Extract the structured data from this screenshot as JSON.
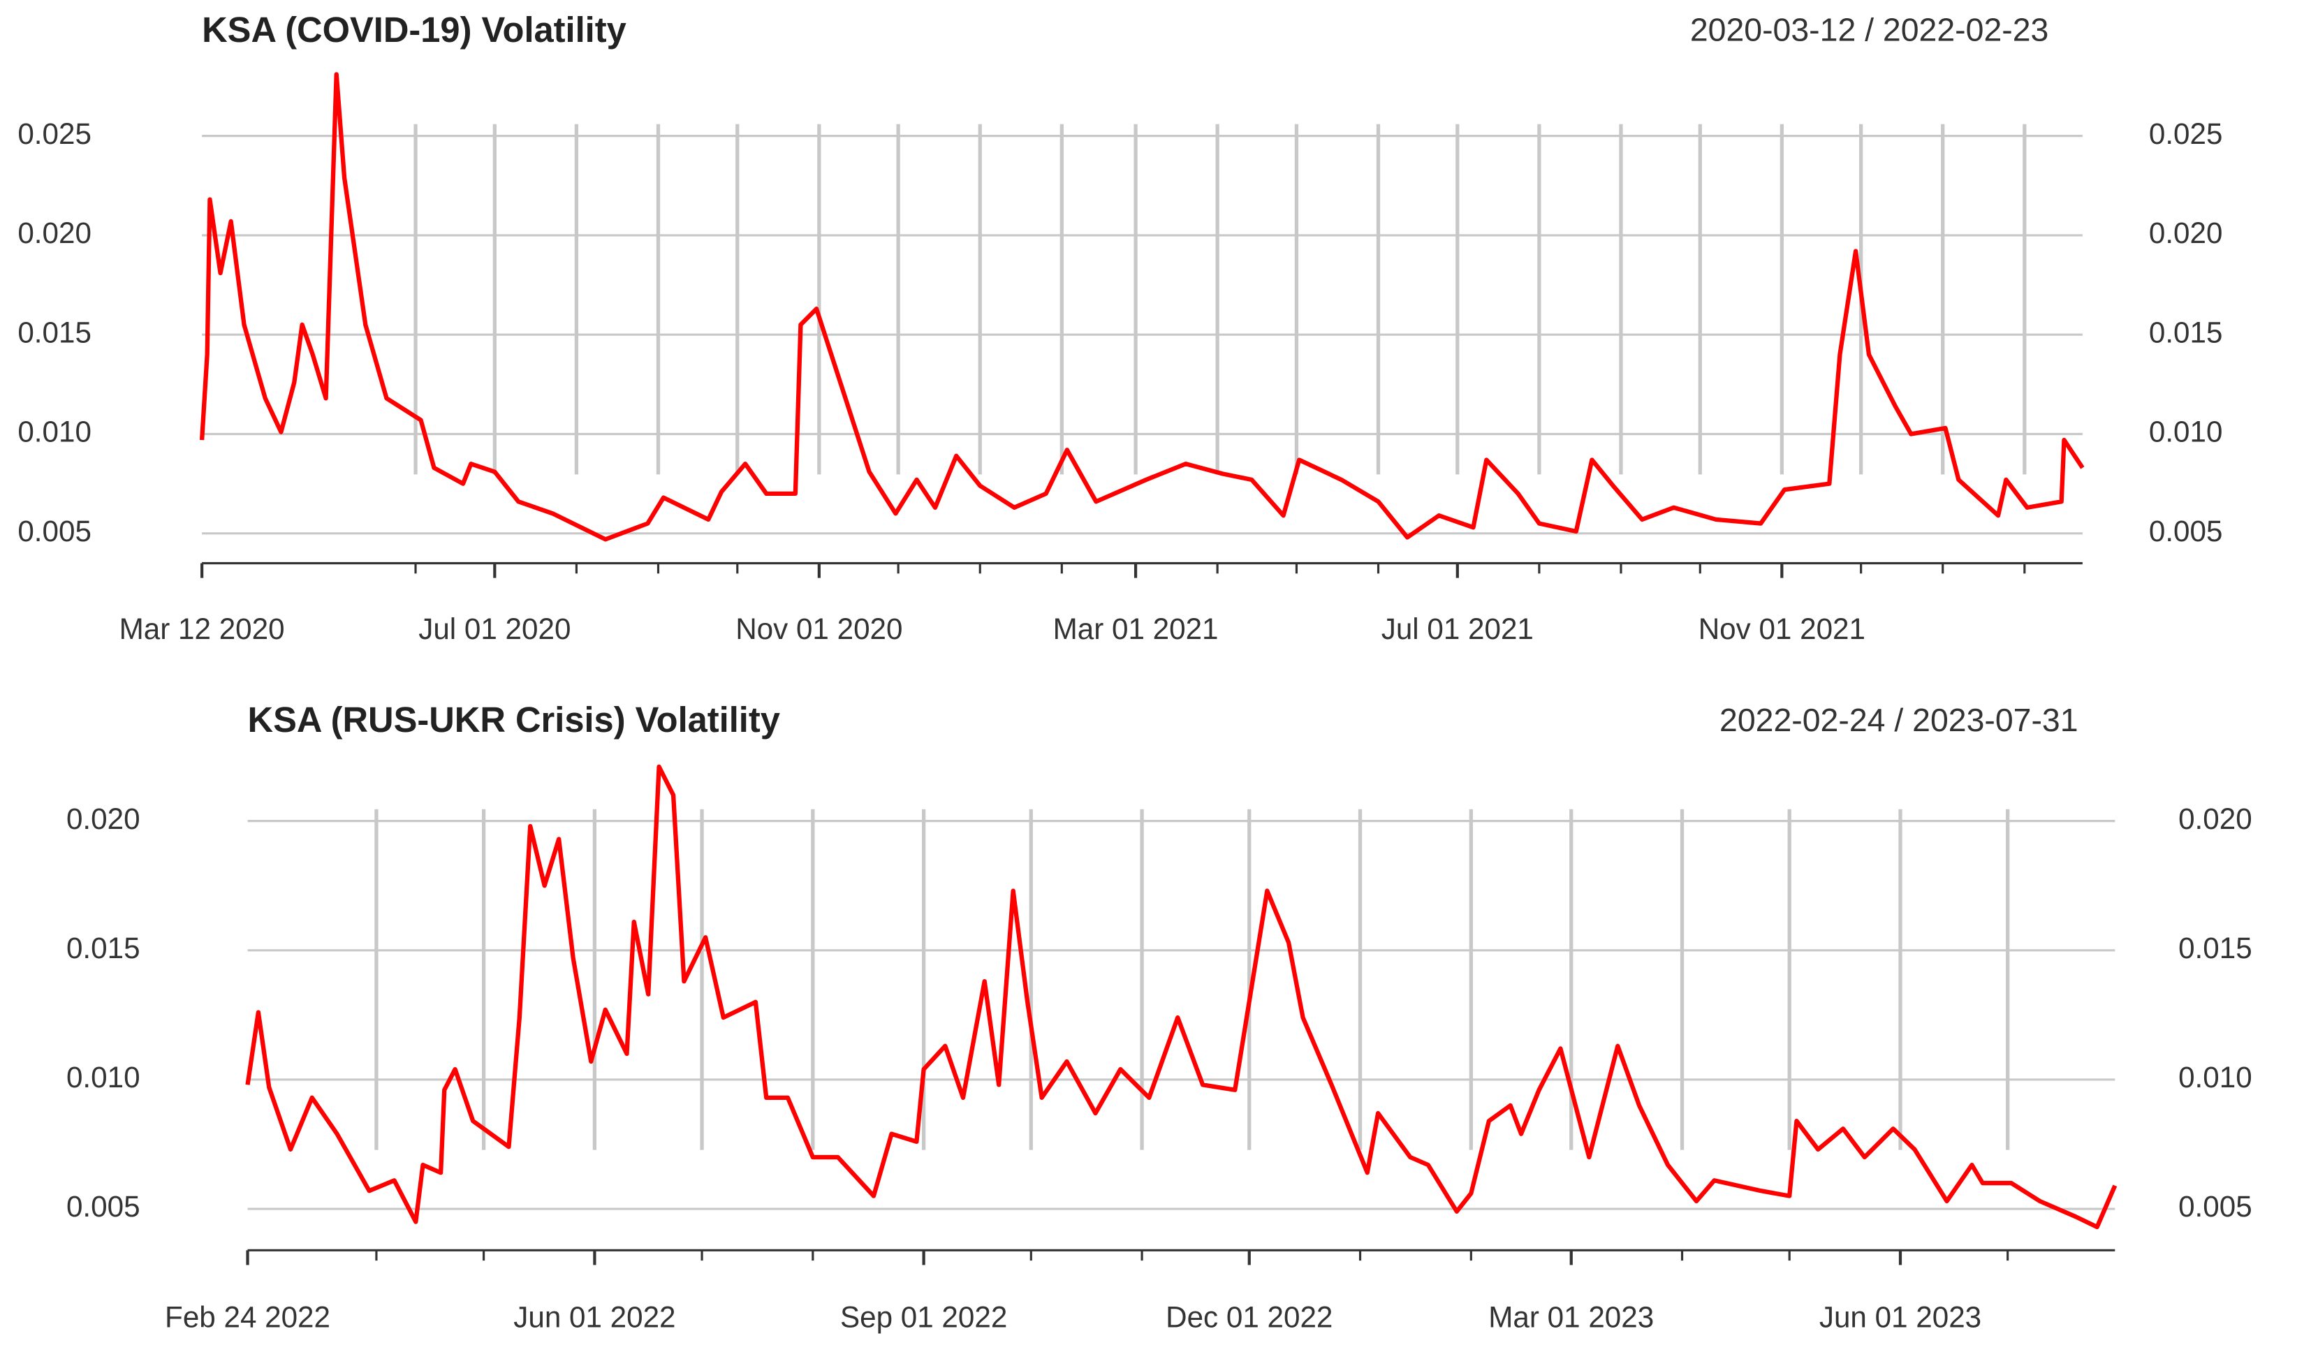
{
  "chart_data": [
    {
      "type": "line",
      "title": "KSA (COVID-19) Volatility",
      "subtitle": "2020-03-12 / 2022-02-23",
      "color": "#ff0000",
      "x": [
        "2020-03-12",
        "2020-03-14",
        "2020-03-15",
        "2020-03-19",
        "2020-03-23",
        "2020-03-28",
        "2020-04-05",
        "2020-04-11",
        "2020-04-16",
        "2020-04-19",
        "2020-04-23",
        "2020-04-28",
        "2020-05-02",
        "2020-05-05",
        "2020-05-13",
        "2020-05-21",
        "2020-06-03",
        "2020-06-08",
        "2020-06-19",
        "2020-06-22",
        "2020-07-01",
        "2020-07-10",
        "2020-07-23",
        "2020-08-12",
        "2020-08-28",
        "2020-09-03",
        "2020-09-20",
        "2020-09-25",
        "2020-10-04",
        "2020-10-12",
        "2020-10-23",
        "2020-10-25",
        "2020-10-31",
        "2020-11-10",
        "2020-11-20",
        "2020-11-30",
        "2020-12-08",
        "2020-12-15",
        "2020-12-23",
        "2021-01-01",
        "2021-01-14",
        "2021-01-26",
        "2021-02-03",
        "2021-02-14",
        "2021-03-05",
        "2021-03-20",
        "2021-04-03",
        "2021-04-14",
        "2021-04-26",
        "2021-05-02",
        "2021-05-18",
        "2021-06-01",
        "2021-06-12",
        "2021-06-24",
        "2021-07-07",
        "2021-07-12",
        "2021-07-24",
        "2021-08-01",
        "2021-08-15",
        "2021-08-21",
        "2021-08-29",
        "2021-09-09",
        "2021-09-21",
        "2021-10-07",
        "2021-10-24",
        "2021-11-02",
        "2021-11-19",
        "2021-11-23",
        "2021-11-29",
        "2021-12-04",
        "2021-12-14",
        "2021-12-20",
        "2022-01-02",
        "2022-01-07",
        "2022-01-22",
        "2022-01-25",
        "2022-02-02",
        "2022-02-15",
        "2022-02-16",
        "2022-02-23"
      ],
      "values": [
        0.0097,
        0.014,
        0.0218,
        0.0181,
        0.0207,
        0.0155,
        0.0118,
        0.0101,
        0.0126,
        0.0155,
        0.014,
        0.0118,
        0.0281,
        0.0229,
        0.0155,
        0.0118,
        0.0107,
        0.0083,
        0.0075,
        0.0085,
        0.0081,
        0.0066,
        0.006,
        0.0047,
        0.0055,
        0.0068,
        0.0057,
        0.0071,
        0.0085,
        0.007,
        0.007,
        0.0155,
        0.0163,
        0.0122,
        0.0081,
        0.006,
        0.0077,
        0.0063,
        0.0089,
        0.0074,
        0.0063,
        0.007,
        0.0092,
        0.0066,
        0.0077,
        0.0085,
        0.008,
        0.0077,
        0.0059,
        0.0087,
        0.0077,
        0.0066,
        0.0048,
        0.0059,
        0.0053,
        0.0087,
        0.007,
        0.0055,
        0.0051,
        0.0087,
        0.0074,
        0.0057,
        0.0063,
        0.0057,
        0.0055,
        0.0072,
        0.0075,
        0.014,
        0.0192,
        0.014,
        0.0114,
        0.01,
        0.0103,
        0.0077,
        0.0059,
        0.0077,
        0.0063,
        0.0066,
        0.0097,
        0.0083
      ],
      "xlim": [
        "2020-03-12",
        "2022-02-23"
      ],
      "xticks": [
        {
          "value": "2020-03-12",
          "label": "Mar 12 2020"
        },
        {
          "value": "2020-07-01",
          "label": "Jul 01 2020"
        },
        {
          "value": "2020-11-01",
          "label": "Nov 01 2020"
        },
        {
          "value": "2021-03-01",
          "label": "Mar 01 2021"
        },
        {
          "value": "2021-07-01",
          "label": "Jul 01 2021"
        },
        {
          "value": "2021-11-01",
          "label": "Nov 01 2021"
        }
      ],
      "xgrid": [
        "2020-06-01",
        "2020-07-01",
        "2020-08-01",
        "2020-09-01",
        "2020-10-01",
        "2020-11-01",
        "2020-12-01",
        "2021-01-01",
        "2021-02-01",
        "2021-03-01",
        "2021-04-01",
        "2021-05-01",
        "2021-06-01",
        "2021-07-01",
        "2021-08-01",
        "2021-09-01",
        "2021-10-01",
        "2021-11-01",
        "2021-12-01",
        "2022-01-01",
        "2022-02-01"
      ],
      "ylim": [
        0.0035,
        0.0285
      ],
      "yticks": [
        0.005,
        {
          "value": 0.01,
          "label": "0.010"
        },
        0.015,
        {
          "value": 0.02,
          "label": "0.020"
        },
        0.025
      ],
      "grid": true
    },
    {
      "type": "line",
      "title": "KSA (RUS-UKR Crisis) Volatility",
      "subtitle": "2022-02-24 / 2023-07-31",
      "color": "#ff0000",
      "x": [
        "2022-02-24",
        "2022-02-27",
        "2022-03-02",
        "2022-03-08",
        "2022-03-14",
        "2022-03-21",
        "2022-03-30",
        "2022-04-06",
        "2022-04-12",
        "2022-04-14",
        "2022-04-19",
        "2022-04-20",
        "2022-04-23",
        "2022-04-28",
        "2022-05-08",
        "2022-05-11",
        "2022-05-14",
        "2022-05-18",
        "2022-05-22",
        "2022-05-26",
        "2022-05-31",
        "2022-06-04",
        "2022-06-10",
        "2022-06-12",
        "2022-06-16",
        "2022-06-19",
        "2022-06-23",
        "2022-06-26",
        "2022-07-02",
        "2022-07-07",
        "2022-07-16",
        "2022-07-19",
        "2022-07-25",
        "2022-08-01",
        "2022-08-08",
        "2022-08-18",
        "2022-08-23",
        "2022-08-30",
        "2022-09-01",
        "2022-09-07",
        "2022-09-12",
        "2022-09-18",
        "2022-09-22",
        "2022-09-26",
        "2022-09-30",
        "2022-10-04",
        "2022-10-11",
        "2022-10-19",
        "2022-10-26",
        "2022-11-03",
        "2022-11-11",
        "2022-11-18",
        "2022-11-27",
        "2022-12-06",
        "2022-12-12",
        "2022-12-16",
        "2022-12-24",
        "2023-01-03",
        "2023-01-06",
        "2023-01-15",
        "2023-01-20",
        "2023-01-28",
        "2023-02-01",
        "2023-02-06",
        "2023-02-12",
        "2023-02-15",
        "2023-02-20",
        "2023-02-26",
        "2023-03-06",
        "2023-03-14",
        "2023-03-20",
        "2023-03-28",
        "2023-04-05",
        "2023-04-10",
        "2023-04-23",
        "2023-05-01",
        "2023-05-03",
        "2023-05-09",
        "2023-05-16",
        "2023-05-22",
        "2023-05-30",
        "2023-06-05",
        "2023-06-14",
        "2023-06-21",
        "2023-06-24",
        "2023-07-02",
        "2023-07-10",
        "2023-07-20",
        "2023-07-26",
        "2023-07-31"
      ],
      "values": [
        0.0098,
        0.0126,
        0.0097,
        0.0073,
        0.0093,
        0.0079,
        0.0057,
        0.0061,
        0.0045,
        0.0067,
        0.0064,
        0.0096,
        0.0104,
        0.0084,
        0.0074,
        0.0124,
        0.0198,
        0.0175,
        0.0193,
        0.0147,
        0.0107,
        0.0127,
        0.011,
        0.0161,
        0.0133,
        0.0221,
        0.021,
        0.0138,
        0.0155,
        0.0124,
        0.013,
        0.0093,
        0.0093,
        0.007,
        0.007,
        0.0055,
        0.0079,
        0.0076,
        0.0104,
        0.0113,
        0.0093,
        0.0138,
        0.0098,
        0.0173,
        0.013,
        0.0093,
        0.0107,
        0.0087,
        0.0104,
        0.0093,
        0.0124,
        0.0098,
        0.0096,
        0.0173,
        0.0153,
        0.0124,
        0.0098,
        0.0064,
        0.0087,
        0.007,
        0.0067,
        0.0049,
        0.0056,
        0.0084,
        0.009,
        0.0079,
        0.0096,
        0.0112,
        0.007,
        0.0113,
        0.009,
        0.0067,
        0.0053,
        0.0061,
        0.0057,
        0.0055,
        0.0084,
        0.0073,
        0.0081,
        0.007,
        0.0081,
        0.0073,
        0.0053,
        0.0067,
        0.006,
        0.006,
        0.0053,
        0.0047,
        0.0043,
        0.0059
      ],
      "xlim": [
        "2022-02-24",
        "2023-07-31"
      ],
      "xticks": [
        {
          "value": "2022-02-24",
          "label": "Feb 24 2022"
        },
        {
          "value": "2022-06-01",
          "label": "Jun 01 2022"
        },
        {
          "value": "2022-09-01",
          "label": "Sep 01 2022"
        },
        {
          "value": "2022-12-01",
          "label": "Dec 01 2022"
        },
        {
          "value": "2023-03-01",
          "label": "Mar 01 2023"
        },
        {
          "value": "2023-06-01",
          "label": "Jun 01 2023"
        }
      ],
      "xgrid": [
        "2022-04-01",
        "2022-05-01",
        "2022-06-01",
        "2022-07-01",
        "2022-08-01",
        "2022-09-01",
        "2022-10-01",
        "2022-11-01",
        "2022-12-01",
        "2023-01-01",
        "2023-02-01",
        "2023-03-01",
        "2023-04-01",
        "2023-05-01",
        "2023-06-01",
        "2023-07-01"
      ],
      "ylim": [
        0.0034,
        0.0225
      ],
      "yticks": [
        0.005,
        {
          "value": 0.01,
          "label": "0.010"
        },
        0.015,
        {
          "value": 0.02,
          "label": "0.020"
        }
      ],
      "grid": true
    }
  ]
}
